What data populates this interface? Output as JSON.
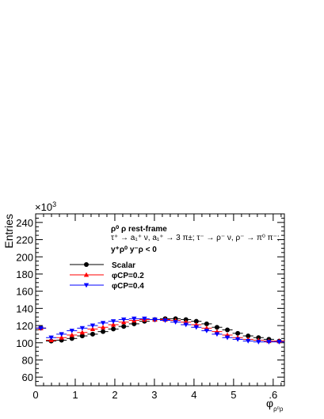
{
  "chart_data": {
    "type": "scatter",
    "xlabel": "φ",
    "xlabel_subscript": "ρ⁰ρ",
    "ylabel": "Entries",
    "y_multiplier": "×10",
    "y_multiplier_exp": "3",
    "xlim": [
      0,
      6.283
    ],
    "ylim": [
      50,
      250
    ],
    "x_ticks": [
      0,
      1,
      2,
      3,
      4,
      5,
      6
    ],
    "x_tick_labels": [
      "0",
      "1",
      "2",
      "3",
      "4",
      "5",
      ".6"
    ],
    "y_ticks": [
      60,
      80,
      100,
      120,
      140,
      160,
      180,
      200,
      220,
      240
    ],
    "y_tick_labels": [
      "60",
      "80",
      "100",
      "120",
      "140",
      "160",
      "180",
      "200",
      "220",
      "240"
    ],
    "grid": false,
    "legend_position": "middle-left",
    "annotations": [
      "ρ⁰ ρ  rest-frame",
      "τ⁺ → a₁⁺ ν, a₁⁺ → 3 π±; τ⁻ → ρ⁻ ν, ρ⁻ → π⁰ π⁻;",
      "y⁺ρ⁰ y⁻ρ < 0"
    ],
    "x": [
      0.131,
      0.393,
      0.654,
      0.916,
      1.178,
      1.44,
      1.702,
      1.963,
      2.225,
      2.487,
      2.749,
      3.011,
      3.272,
      3.534,
      3.796,
      4.058,
      4.32,
      4.581,
      4.843,
      5.105,
      5.367,
      5.629,
      5.891,
      6.152
    ],
    "series": [
      {
        "name": "Scalar",
        "color": "#000000",
        "marker": "circle",
        "values": [
          117,
          102,
          103,
          105,
          108,
          110,
          113,
          116,
          119,
          122,
          125,
          127,
          128,
          128,
          127,
          125,
          122,
          118,
          115,
          111,
          108,
          106,
          104,
          102
        ]
      },
      {
        "name": "φCP=0.2",
        "color": "#ff0000",
        "marker": "triangle-up",
        "values": [
          117,
          103,
          106,
          109,
          112,
          116,
          118,
          121,
          124,
          126,
          127,
          127,
          127,
          126,
          124,
          121,
          117,
          113,
          109,
          106,
          104,
          103,
          102,
          102
        ]
      },
      {
        "name": "φCP=0.4",
        "color": "#0000ff",
        "marker": "triangle-down",
        "values": [
          117,
          106,
          110,
          114,
          117,
          120,
          123,
          125,
          127,
          128,
          128,
          127,
          126,
          124,
          121,
          118,
          114,
          110,
          106,
          104,
          102,
          101,
          101,
          101
        ]
      }
    ]
  }
}
